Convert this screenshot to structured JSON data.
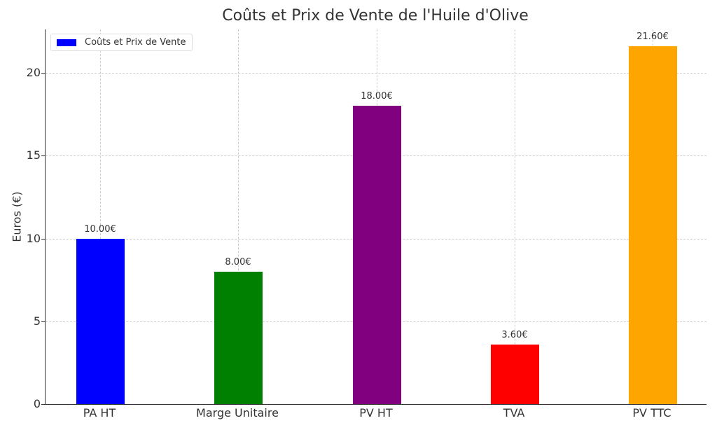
{
  "chart_data": {
    "type": "bar",
    "title": "Coûts et Prix de Vente de l'Huile d'Olive",
    "xlabel": "",
    "ylabel": "Euros (€)",
    "ylim": [
      0,
      22.7
    ],
    "yticks": [
      0,
      5,
      10,
      15,
      20
    ],
    "grid": true,
    "legend_position": "upper left",
    "legend": [
      "Coûts et Prix de Vente"
    ],
    "categories": [
      "PA HT",
      "Marge Unitaire",
      "PV HT",
      "TVA",
      "PV TTC"
    ],
    "values": [
      10.0,
      8.0,
      18.0,
      3.6,
      21.6
    ],
    "value_labels": [
      "10.00€",
      "8.00€",
      "18.00€",
      "3.60€",
      "21.60€"
    ],
    "colors": [
      "#0000ff",
      "#008000",
      "#800080",
      "#ff0000",
      "#ffa500"
    ]
  }
}
